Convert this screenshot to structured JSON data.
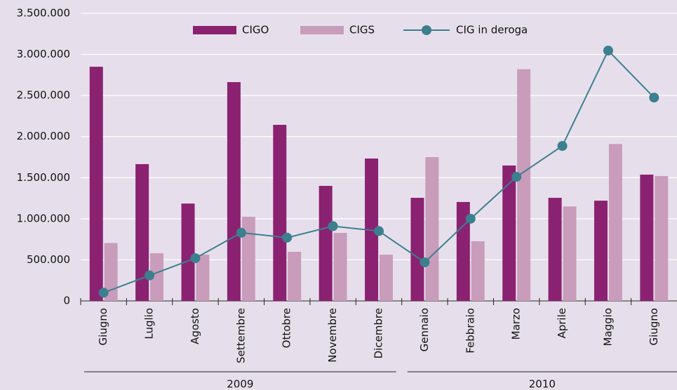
{
  "chart_data": {
    "type": "bar_line",
    "categories": [
      "Giugno",
      "Luglio",
      "Agosto",
      "Settembre",
      "Ottobre",
      "Novembre",
      "Dicembre",
      "Gennaio",
      "Febbraio",
      "Marzo",
      "Aprile",
      "Maggio",
      "Giugno"
    ],
    "groups": [
      {
        "label": "2009",
        "size": 7
      },
      {
        "label": "2010",
        "size": 6
      }
    ],
    "series": [
      {
        "name": "CIGO",
        "type": "bar",
        "color": "#8b2271",
        "values": [
          2850000,
          1665000,
          1185000,
          2663000,
          2143000,
          1400000,
          1733000,
          1255000,
          1204000,
          1648000,
          1255000,
          1220000,
          1537000
        ]
      },
      {
        "name": "CIGS",
        "type": "bar",
        "color": "#c99cbb",
        "values": [
          705000,
          580000,
          563000,
          1024000,
          598000,
          828000,
          563000,
          1750000,
          726000,
          2820000,
          1150000,
          1910000,
          1520000
        ]
      },
      {
        "name": "CIG in deroga",
        "type": "line",
        "color": "#3c7f8f",
        "values": [
          100000,
          310000,
          520000,
          830000,
          770000,
          910000,
          850000,
          470000,
          1000000,
          1510000,
          1886000,
          3047000,
          2475000
        ]
      }
    ],
    "ylim": [
      0,
      3500000
    ],
    "yticks": [
      0,
      {
        "value": 500000,
        "label": "500.000"
      },
      {
        "value": 1000000,
        "label": "1.000.000"
      },
      {
        "value": 1500000,
        "label": "1.500.000"
      },
      {
        "value": 2000000,
        "label": "2.000.000"
      },
      {
        "value": 2500000,
        "label": "2.500.000"
      },
      {
        "value": 3000000,
        "label": "3.000.000"
      },
      {
        "value": 3500000,
        "label": "3.500.000"
      }
    ],
    "grid": true
  }
}
